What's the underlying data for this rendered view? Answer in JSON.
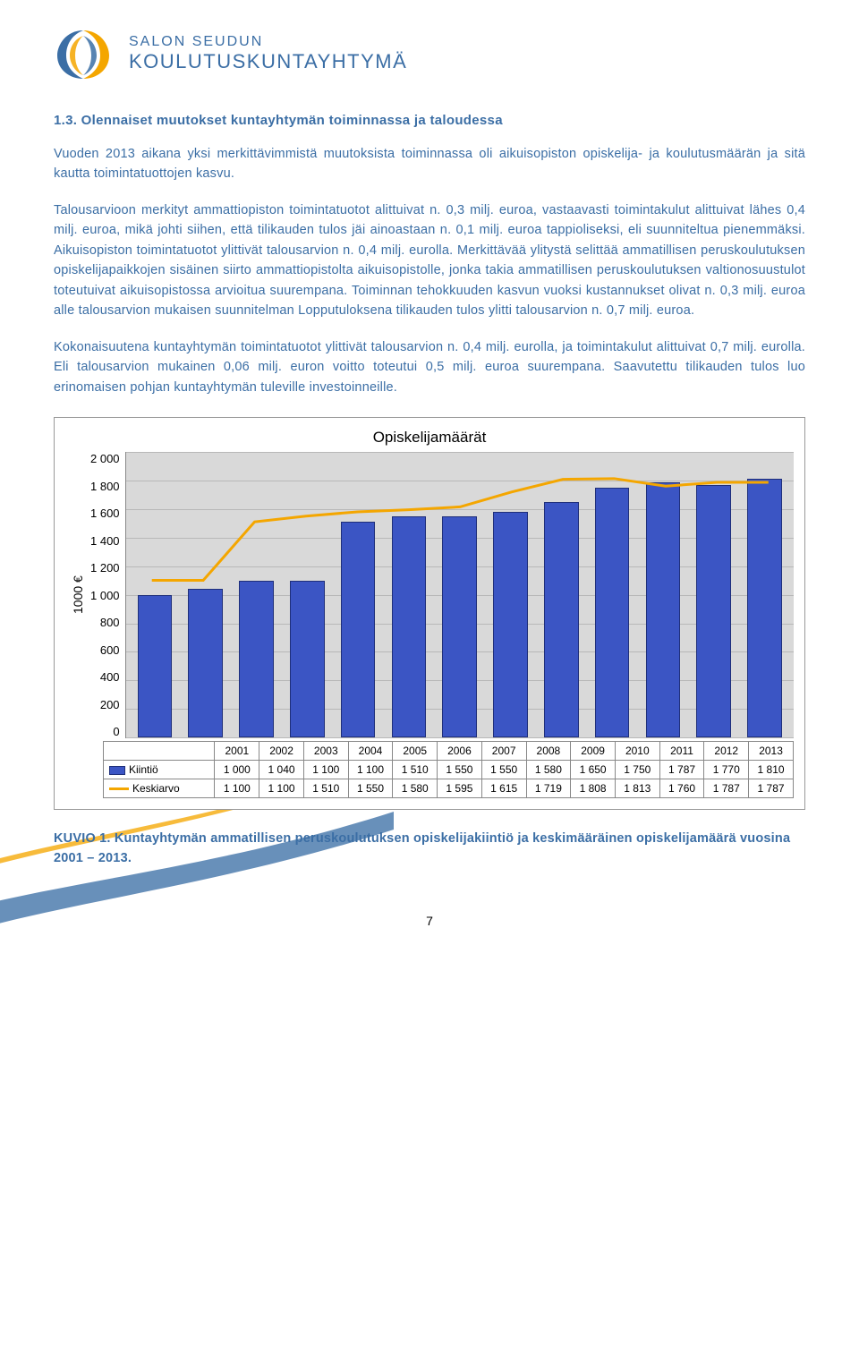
{
  "logo": {
    "line1": "SALON SEUDUN",
    "line2": "KOULUTUSKUNTAYHTYMÄ"
  },
  "heading": "1.3. Olennaiset muutokset kuntayhtymän toiminnassa ja taloudessa",
  "paragraphs": {
    "p1": "Vuoden 2013 aikana yksi merkittävimmistä muutoksista toiminnassa oli aikuisopiston opiskelija- ja koulutusmäärän ja sitä kautta toimintatuottojen kasvu.",
    "p2": "Talousarvioon merkityt ammattiopiston toimintatuotot alittuivat n. 0,3 milj. euroa, vastaavasti toimintakulut alittuivat lähes 0,4 milj. euroa, mikä johti siihen, että tilikauden tulos jäi ainoastaan n. 0,1 milj. euroa tappioliseksi, eli suunniteltua pienemmäksi. Aikuisopiston toimintatuotot ylittivät talousarvion n. 0,4 milj. eurolla. Merkittävää ylitystä selittää ammatillisen peruskoulutuksen opiskelijapaikkojen sisäinen siirto ammattiopistolta aikuisopistolle, jonka takia ammatillisen peruskoulutuksen valtionosuustulot toteutuivat aikuisopistossa arvioitua suurempana. Toiminnan tehokkuuden kasvun vuoksi kustannukset olivat n. 0,3 milj. euroa alle talousarvion mukaisen suunnitelman Lopputuloksena tilikauden tulos ylitti talousarvion n. 0,7 milj. euroa.",
    "p3": "Kokonaisuutena kuntayhtymän toimintatuotot ylittivät talousarvion n. 0,4 milj. eurolla, ja toimintakulut alittuivat 0,7 milj. eurolla. Eli talousarvion mukainen 0,06 milj. euron voitto toteutui 0,5 milj. euroa suurempana. Saavutettu tilikauden tulos luo erinomaisen pohjan kuntayhtymän tuleville investoinneille."
  },
  "chart": {
    "type": "bar+line",
    "title": "Opiskelijamäärät",
    "y_label": "1000 €",
    "ymin": 0,
    "ymax": 2000,
    "ytick_step": 200,
    "yticks": [
      "2 000",
      "1 800",
      "1 600",
      "1 400",
      "1 200",
      "1 000",
      "800",
      "600",
      "400",
      "200",
      "0"
    ],
    "plot_background": "#d9d9d9",
    "grid_color": "#b8b8b8",
    "bar_color": "#3b55c4",
    "bar_border": "#1f2f7a",
    "line_color": "#f4a600",
    "line_width": 3,
    "categories": [
      "2001",
      "2002",
      "2003",
      "2004",
      "2005",
      "2006",
      "2007",
      "2008",
      "2009",
      "2010",
      "2011",
      "2012",
      "2013"
    ],
    "series": {
      "kiintio": {
        "label": "Kiintiö",
        "values": [
          1000,
          1040,
          1100,
          1100,
          1510,
          1550,
          1550,
          1580,
          1650,
          1750,
          1787,
          1770,
          1810
        ]
      },
      "keskiarvo": {
        "label": "Keskiarvo",
        "values": [
          1100,
          1100,
          1510,
          1550,
          1580,
          1595,
          1615,
          1719,
          1808,
          1813,
          1760,
          1787,
          1787
        ]
      }
    }
  },
  "caption": "KUVIO 1. Kuntayhtymän ammatillisen peruskoulutuksen opiskelijakiintiö ja keskimääräinen opiskelijamäärä vuosina 2001 – 2013.",
  "page_number": "7"
}
